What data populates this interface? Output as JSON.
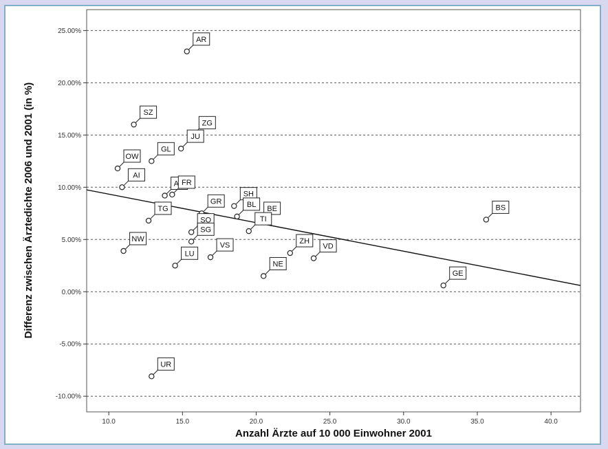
{
  "chart_data": {
    "type": "scatter",
    "title": "",
    "xlabel": "Anzahl Ärzte auf 10 000 Einwohner 2001",
    "ylabel": "Differenz zwischen Ärztedichte 2006 und 2001 (in %)",
    "xlim": [
      8.5,
      42
    ],
    "ylim": [
      -11.5,
      27
    ],
    "x_ticks": [
      10,
      15,
      20,
      25,
      30,
      35,
      40
    ],
    "x_tick_labels": [
      "10.0",
      "15.0",
      "20.0",
      "25.0",
      "30.0",
      "35.0",
      "40.0"
    ],
    "y_ticks": [
      -10,
      -5,
      0,
      5,
      10,
      15,
      20,
      25
    ],
    "y_tick_labels": [
      "-10.00%",
      "-5.00%",
      "0.00%",
      "5.00%",
      "10.00%",
      "15.00%",
      "20.00%",
      "25.00%"
    ],
    "grid": "horizontal-dashed",
    "points": [
      {
        "label": "AR",
        "x": 15.3,
        "y": 23.0
      },
      {
        "label": "SZ",
        "x": 11.7,
        "y": 16.0
      },
      {
        "label": "ZG",
        "x": 15.7,
        "y": 15.0
      },
      {
        "label": "GL",
        "x": 12.9,
        "y": 12.5
      },
      {
        "label": "JU",
        "x": 14.9,
        "y": 13.7
      },
      {
        "label": "OW",
        "x": 10.6,
        "y": 11.8
      },
      {
        "label": "AI",
        "x": 10.9,
        "y": 10.0
      },
      {
        "label": "AG",
        "x": 13.8,
        "y": 9.2
      },
      {
        "label": "FR",
        "x": 14.3,
        "y": 9.3
      },
      {
        "label": "SH",
        "x": 18.5,
        "y": 8.2
      },
      {
        "label": "BL",
        "x": 18.7,
        "y": 7.2
      },
      {
        "label": "GR",
        "x": 16.3,
        "y": 7.5
      },
      {
        "label": "TG",
        "x": 12.7,
        "y": 6.8
      },
      {
        "label": "SO",
        "x": 15.6,
        "y": 5.7
      },
      {
        "label": "SG",
        "x": 15.6,
        "y": 4.8
      },
      {
        "label": "BE",
        "x": 20.1,
        "y": 6.8
      },
      {
        "label": "TI",
        "x": 19.5,
        "y": 5.8
      },
      {
        "label": "NW",
        "x": 11.0,
        "y": 3.9
      },
      {
        "label": "VS",
        "x": 16.9,
        "y": 3.3
      },
      {
        "label": "LU",
        "x": 14.5,
        "y": 2.5
      },
      {
        "label": "ZH",
        "x": 22.3,
        "y": 3.7
      },
      {
        "label": "VD",
        "x": 23.9,
        "y": 3.2
      },
      {
        "label": "NE",
        "x": 20.5,
        "y": 1.5
      },
      {
        "label": "BS",
        "x": 35.6,
        "y": 6.9
      },
      {
        "label": "GE",
        "x": 32.7,
        "y": 0.6
      },
      {
        "label": "UR",
        "x": 12.9,
        "y": -8.1
      }
    ],
    "fit_line": {
      "x": [
        8.5,
        42
      ],
      "y": [
        9.75,
        0.6
      ]
    }
  }
}
